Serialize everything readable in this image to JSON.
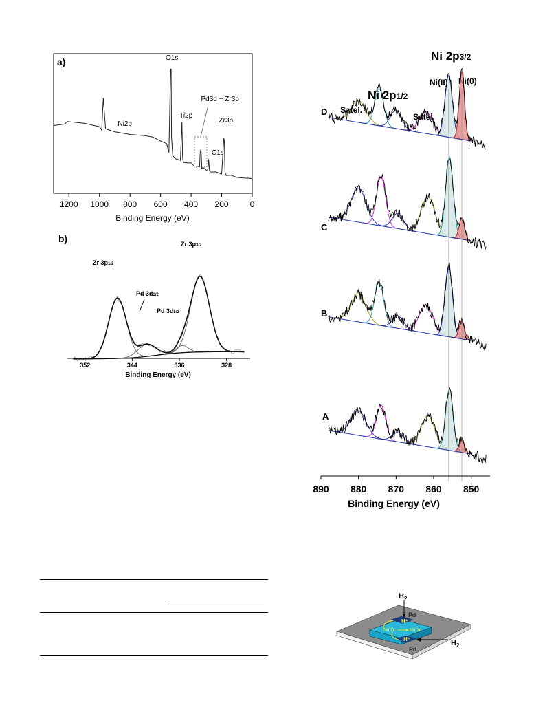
{
  "chart_data": [
    {
      "type": "line",
      "panel_label": "a)",
      "xlabel": "Binding Energy (eV)",
      "xlim": [
        1300,
        0
      ],
      "x_reversed": true,
      "xticks": [
        1200,
        1000,
        800,
        600,
        400,
        200,
        0
      ],
      "annotations": [
        {
          "text": "O1s",
          "x": 531
        },
        {
          "text": "Ni2p",
          "x": 880
        },
        {
          "text": "Ti2p",
          "x": 458
        },
        {
          "text": "Pd3d + Zr3p",
          "x": 335
        },
        {
          "text": "C1s",
          "x": 284
        },
        {
          "text": "Zr3p",
          "x": 182
        }
      ],
      "series": [
        {
          "x": [
            1300,
            1230,
            1210,
            1150,
            1100,
            1000,
            985,
            975,
            960,
            900,
            800,
            700,
            650,
            600,
            560,
            545,
            535,
            531,
            528,
            520,
            500,
            470,
            460,
            455,
            450,
            420,
            400,
            380,
            345,
            340,
            335,
            332,
            330,
            320,
            300,
            290,
            285,
            280,
            270,
            240,
            200,
            186,
            182,
            178,
            170,
            140,
            100,
            60,
            20,
            0
          ],
          "y": [
            0.5,
            0.51,
            0.54,
            0.53,
            0.52,
            0.49,
            0.47,
            0.72,
            0.47,
            0.45,
            0.43,
            0.41,
            0.4,
            0.38,
            0.35,
            0.28,
            0.95,
            0.98,
            0.4,
            0.25,
            0.23,
            0.22,
            0.52,
            0.22,
            0.2,
            0.19,
            0.18,
            0.17,
            0.16,
            0.28,
            0.3,
            0.22,
            0.15,
            0.14,
            0.13,
            0.14,
            0.22,
            0.13,
            0.12,
            0.11,
            0.1,
            0.4,
            0.38,
            0.1,
            0.09,
            0.08,
            0.07,
            0.07,
            0.06,
            0.06
          ]
        }
      ]
    },
    {
      "type": "line",
      "panel_label": "b)",
      "xlabel": "Binding Energy (eV)",
      "xlim": [
        355,
        324
      ],
      "x_reversed": true,
      "xticks": [
        352,
        344,
        336,
        328
      ],
      "peak_labels": [
        {
          "text": "Zr 3p1/2",
          "main": "Zr 3p",
          "sub": "1/2"
        },
        {
          "text": "Pd 3d3/2",
          "main": "Pd 3d",
          "sub": "3/2"
        },
        {
          "text": "Pd 3d5/2",
          "main": "Pd 3d",
          "sub": "5/2"
        },
        {
          "text": "Zr 3p3/2",
          "main": "Zr 3p",
          "sub": "3/2"
        }
      ],
      "components": [
        {
          "center": 346.5,
          "height": 1.0
        },
        {
          "center": 341.5,
          "height": 0.2
        },
        {
          "center": 335.5,
          "height": 0.12
        },
        {
          "center": 332.5,
          "height": 1.25
        }
      ]
    },
    {
      "type": "line",
      "title_main": "Ni 2p",
      "title_sub": "3/2",
      "subtitle_main": "Ni 2p",
      "subtitle_sub": "1/2",
      "xlabel": "Binding Energy (eV)",
      "xlim": [
        890,
        845
      ],
      "x_reversed": true,
      "xticks": [
        890,
        880,
        870,
        860,
        850
      ],
      "peak_labels": [
        "Satel.",
        "Satel.",
        "Ni(II)",
        "Ni(0)"
      ],
      "series": [
        {
          "name": "D",
          "peaks": [
            {
              "c": 880,
              "h": 0.35,
              "color": "#a0a020"
            },
            {
              "c": 874.5,
              "h": 0.6,
              "color": "#2a9f9f"
            },
            {
              "c": 870,
              "h": 0.3,
              "color": "#3030b0"
            },
            {
              "c": 862,
              "h": 0.35,
              "color": "#d030d0"
            },
            {
              "c": 856,
              "h": 1.0,
              "color": "#2a3aa8"
            },
            {
              "c": 852.5,
              "h": 1.1,
              "color": "#c02020"
            }
          ]
        },
        {
          "name": "C",
          "peaks": [
            {
              "c": 880,
              "h": 0.55,
              "color": "#2a3aa8"
            },
            {
              "c": 874,
              "h": 0.8,
              "color": "#d030d0"
            },
            {
              "c": 869.5,
              "h": 0.25,
              "color": "#3030b0"
            },
            {
              "c": 861.5,
              "h": 0.6,
              "color": "#a0a020"
            },
            {
              "c": 855.8,
              "h": 1.3,
              "color": "#2a9f9f"
            },
            {
              "c": 852.5,
              "h": 0.35,
              "color": "#c02020"
            }
          ]
        },
        {
          "name": "B",
          "peaks": [
            {
              "c": 880,
              "h": 0.45,
              "color": "#a0a020"
            },
            {
              "c": 874.5,
              "h": 0.7,
              "color": "#2a9f9f"
            },
            {
              "c": 869.5,
              "h": 0.2,
              "color": "#3030b0"
            },
            {
              "c": 862,
              "h": 0.45,
              "color": "#d030d0"
            },
            {
              "c": 856,
              "h": 1.15,
              "color": "#2a3aa8"
            },
            {
              "c": 852.5,
              "h": 0.3,
              "color": "#c02020"
            }
          ]
        },
        {
          "name": "A",
          "peaks": [
            {
              "c": 880,
              "h": 0.4,
              "color": "#2a3aa8"
            },
            {
              "c": 874,
              "h": 0.55,
              "color": "#d030d0"
            },
            {
              "c": 869.5,
              "h": 0.15,
              "color": "#3030b0"
            },
            {
              "c": 861.5,
              "h": 0.5,
              "color": "#a0a020"
            },
            {
              "c": 855.8,
              "h": 1.0,
              "color": "#2a9f9f"
            },
            {
              "c": 852.5,
              "h": 0.2,
              "color": "#c02020"
            }
          ]
        }
      ]
    }
  ],
  "schematic": {
    "h2_top_main": "H",
    "h2_top_sub": "2",
    "h2_right_main": "H",
    "h2_right_sub": "2",
    "pd_top": "Pd",
    "pd_bottom": "Pd",
    "h_plus_top": "H⁺",
    "h_plus_bottom": "H⁺",
    "ni2": "Ni(II)",
    "ni0": "Ni(0)",
    "colors": {
      "substrate": "#8c8c8c",
      "block": "#1aa3c8",
      "block_top": "#2bb8dd",
      "pd": "#1a3a7a",
      "arrow": "#e6e62a"
    }
  }
}
